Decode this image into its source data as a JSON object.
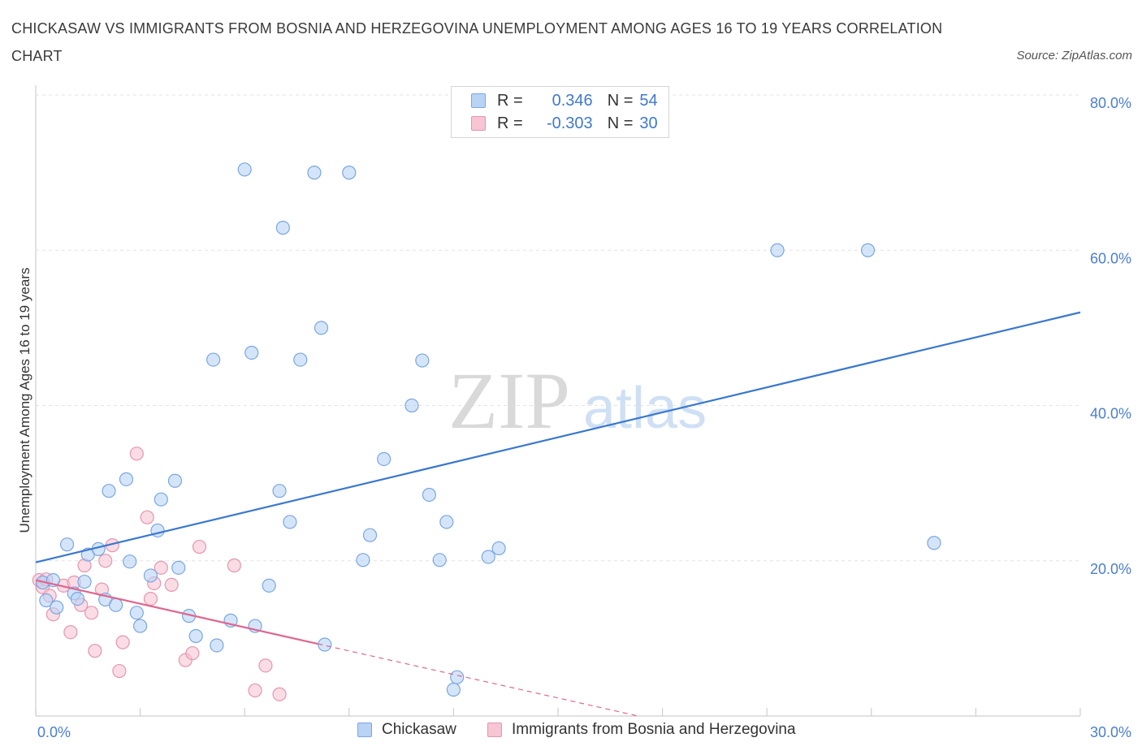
{
  "title": "CHICKASAW VS IMMIGRANTS FROM BOSNIA AND HERZEGOVINA UNEMPLOYMENT AMONG AGES 16 TO 19 YEARS CORRELATION CHART",
  "source": "Source: ZipAtlas.com",
  "watermark": {
    "zip": "ZIP",
    "atlas": "atlas"
  },
  "legend": {
    "rows": [
      {
        "r_label": "R =",
        "r_value": "0.346",
        "n_label": "N =",
        "n_value": "54"
      },
      {
        "r_label": "R =",
        "r_value": "-0.303",
        "n_label": "N =",
        "n_value": "30"
      }
    ]
  },
  "colors": {
    "blue_fill": "#b9d3f5",
    "blue_stroke": "#7aa6e0",
    "blue_line": "#3a78d0",
    "pink_fill": "#f7c5d4",
    "pink_stroke": "#e595b0",
    "pink_line": "#e0668f",
    "grid": "#e3e3e3",
    "tick_text": "#4a7ecf"
  },
  "chart_data": {
    "type": "scatter",
    "title": "CHICKASAW VS IMMIGRANTS FROM BOSNIA AND HERZEGOVINA UNEMPLOYMENT AMONG AGES 16 TO 19 YEARS CORRELATION CHART",
    "xlabel": "",
    "ylabel": "Unemployment Among Ages 16 to 19 years",
    "xlim": [
      0,
      30
    ],
    "ylim": [
      0,
      80
    ],
    "x_tick_labels": [
      "0.0%",
      "30.0%"
    ],
    "y_ticks": [
      20,
      40,
      60,
      80
    ],
    "y_tick_labels": [
      "20.0%",
      "40.0%",
      "60.0%",
      "80.0%"
    ],
    "grid": true,
    "legend_position": "top-center",
    "series": [
      {
        "name": "Chickasaw",
        "color": "#b9d3f5",
        "r": 0.346,
        "n": 54,
        "trend": {
          "x": [
            0,
            30
          ],
          "y": [
            19.8,
            52.0
          ],
          "style": "solid"
        },
        "points": [
          [
            0.2,
            17.2
          ],
          [
            0.3,
            14.9
          ],
          [
            0.5,
            17.5
          ],
          [
            0.6,
            14.0
          ],
          [
            0.9,
            22.1
          ],
          [
            1.1,
            15.8
          ],
          [
            1.2,
            15.1
          ],
          [
            1.4,
            17.3
          ],
          [
            1.5,
            20.8
          ],
          [
            1.8,
            21.5
          ],
          [
            2.0,
            15.0
          ],
          [
            2.1,
            29.0
          ],
          [
            2.3,
            14.3
          ],
          [
            2.6,
            30.5
          ],
          [
            2.7,
            19.9
          ],
          [
            2.9,
            13.3
          ],
          [
            3.0,
            11.6
          ],
          [
            3.3,
            18.1
          ],
          [
            3.5,
            23.9
          ],
          [
            3.6,
            27.9
          ],
          [
            4.0,
            30.3
          ],
          [
            4.1,
            19.1
          ],
          [
            4.4,
            12.9
          ],
          [
            4.6,
            10.3
          ],
          [
            5.1,
            45.9
          ],
          [
            5.2,
            9.1
          ],
          [
            5.6,
            12.3
          ],
          [
            6.0,
            70.4
          ],
          [
            6.2,
            46.8
          ],
          [
            6.3,
            11.6
          ],
          [
            6.7,
            16.8
          ],
          [
            7.0,
            29.0
          ],
          [
            7.1,
            62.9
          ],
          [
            7.3,
            25.0
          ],
          [
            7.6,
            45.9
          ],
          [
            8.0,
            70.0
          ],
          [
            8.2,
            50.0
          ],
          [
            8.3,
            9.2
          ],
          [
            9.0,
            70.0
          ],
          [
            9.4,
            20.1
          ],
          [
            9.6,
            23.3
          ],
          [
            10.0,
            33.1
          ],
          [
            10.8,
            40.0
          ],
          [
            11.1,
            45.8
          ],
          [
            11.3,
            28.5
          ],
          [
            11.6,
            20.1
          ],
          [
            11.8,
            25.0
          ],
          [
            12.1,
            5.0
          ],
          [
            12.0,
            3.4
          ],
          [
            13.0,
            20.5
          ],
          [
            13.3,
            21.6
          ],
          [
            21.3,
            60.0
          ],
          [
            23.9,
            60.0
          ],
          [
            25.8,
            22.3
          ]
        ]
      },
      {
        "name": "Immigrants from Bosnia and Herzegovina",
        "color": "#f7c5d4",
        "r": -0.303,
        "n": 30,
        "trend": {
          "x": [
            0,
            8.1
          ],
          "y": [
            17.5,
            9.3
          ],
          "style": "solid",
          "dashed_to": [
            17.3,
            0
          ]
        },
        "points": [
          [
            0.1,
            17.5
          ],
          [
            0.2,
            16.6
          ],
          [
            0.4,
            15.5
          ],
          [
            0.5,
            13.1
          ],
          [
            0.8,
            16.8
          ],
          [
            1.0,
            10.8
          ],
          [
            1.1,
            17.2
          ],
          [
            1.3,
            14.3
          ],
          [
            1.4,
            19.4
          ],
          [
            1.6,
            13.3
          ],
          [
            1.7,
            8.4
          ],
          [
            1.9,
            16.3
          ],
          [
            2.0,
            20.0
          ],
          [
            2.2,
            22.0
          ],
          [
            2.4,
            5.8
          ],
          [
            2.5,
            9.5
          ],
          [
            2.9,
            33.8
          ],
          [
            3.2,
            25.6
          ],
          [
            3.3,
            15.1
          ],
          [
            3.4,
            17.1
          ],
          [
            3.6,
            19.1
          ],
          [
            3.9,
            16.9
          ],
          [
            4.3,
            7.2
          ],
          [
            4.5,
            8.1
          ],
          [
            4.7,
            21.8
          ],
          [
            5.7,
            19.4
          ],
          [
            6.3,
            3.3
          ],
          [
            6.6,
            6.5
          ],
          [
            7.0,
            2.8
          ],
          [
            0.3,
            17.6
          ]
        ]
      }
    ]
  },
  "bottom_legend": [
    {
      "label": "Chickasaw"
    },
    {
      "label": "Immigrants from Bosnia and Herzegovina"
    }
  ]
}
